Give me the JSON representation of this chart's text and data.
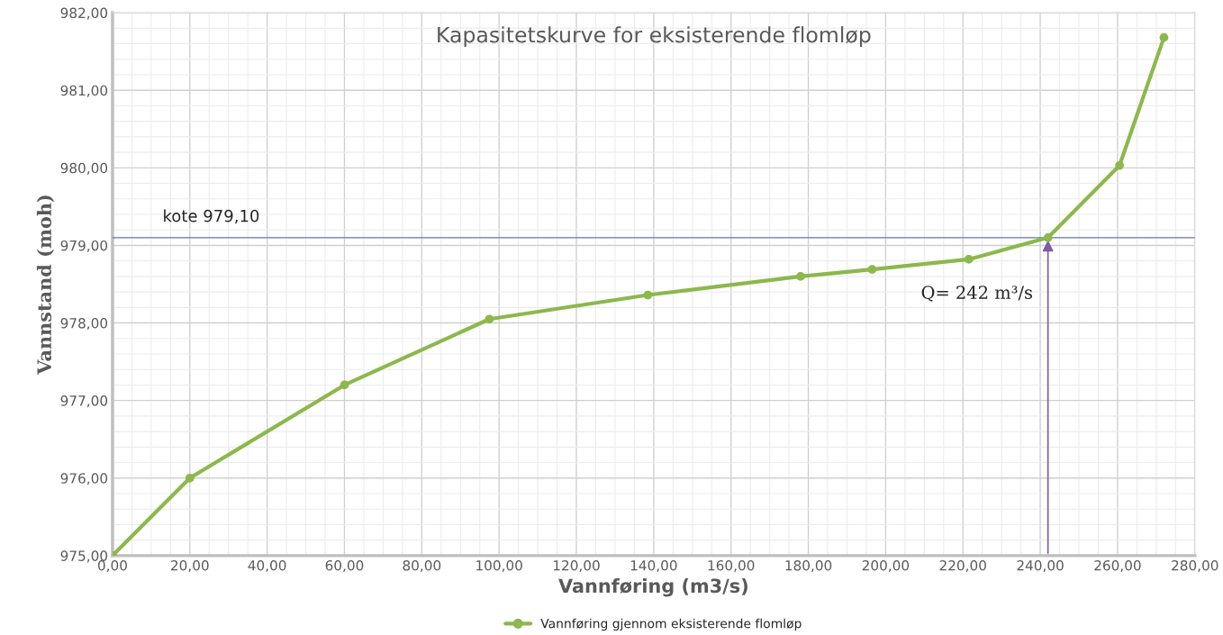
{
  "chart_data": {
    "type": "line",
    "title": "Kapasitetskurve for eksisterende flomløp",
    "xlabel": "Vannføring (m3/s)",
    "ylabel": "Vannstand (moh)",
    "x": [
      0,
      20,
      60,
      97.5,
      138.5,
      178,
      196.5,
      221.5,
      242,
      260.5,
      272
    ],
    "series": [
      {
        "name": "Vannføring gjennom eksisterende flomløp",
        "color": "#8cb84c",
        "values": [
          975.0,
          976.0,
          977.2,
          978.05,
          978.36,
          978.6,
          978.69,
          978.82,
          979.1,
          980.03,
          981.68
        ]
      }
    ],
    "xlim": [
      0,
      280
    ],
    "ylim": [
      975,
      982
    ],
    "xticks": [
      {
        "value": 0,
        "label": "0,00"
      },
      {
        "value": 20,
        "label": "20,00"
      },
      {
        "value": 40,
        "label": "40,00"
      },
      {
        "value": 60,
        "label": "60,00"
      },
      {
        "value": 80,
        "label": "80,00"
      },
      {
        "value": 100,
        "label": "100,00"
      },
      {
        "value": 120,
        "label": "120,00"
      },
      {
        "value": 140,
        "label": "140,00"
      },
      {
        "value": 160,
        "label": "160,00"
      },
      {
        "value": 180,
        "label": "180,00"
      },
      {
        "value": 200,
        "label": "200,00"
      },
      {
        "value": 220,
        "label": "220,00"
      },
      {
        "value": 240,
        "label": "240,00"
      },
      {
        "value": 260,
        "label": "260,00"
      },
      {
        "value": 280,
        "label": "280,00"
      }
    ],
    "yticks": [
      {
        "value": 975,
        "label": "975,00"
      },
      {
        "value": 976,
        "label": "976,00"
      },
      {
        "value": 977,
        "label": "977,00"
      },
      {
        "value": 978,
        "label": "978,00"
      },
      {
        "value": 979,
        "label": "979,00"
      },
      {
        "value": 980,
        "label": "980,00"
      },
      {
        "value": 981,
        "label": "981,00"
      },
      {
        "value": 982,
        "label": "982,00"
      }
    ],
    "ref_lines": [
      {
        "axis": "y",
        "value": 979.1,
        "label": "kote 979,10",
        "color": "#5a78a8"
      }
    ],
    "annotations": [
      {
        "text": "Q= 242 m³/s",
        "x": 242,
        "y": 979.1
      }
    ],
    "grid": true,
    "legend": "bottom",
    "marker": "circle",
    "line_style": "solid"
  }
}
